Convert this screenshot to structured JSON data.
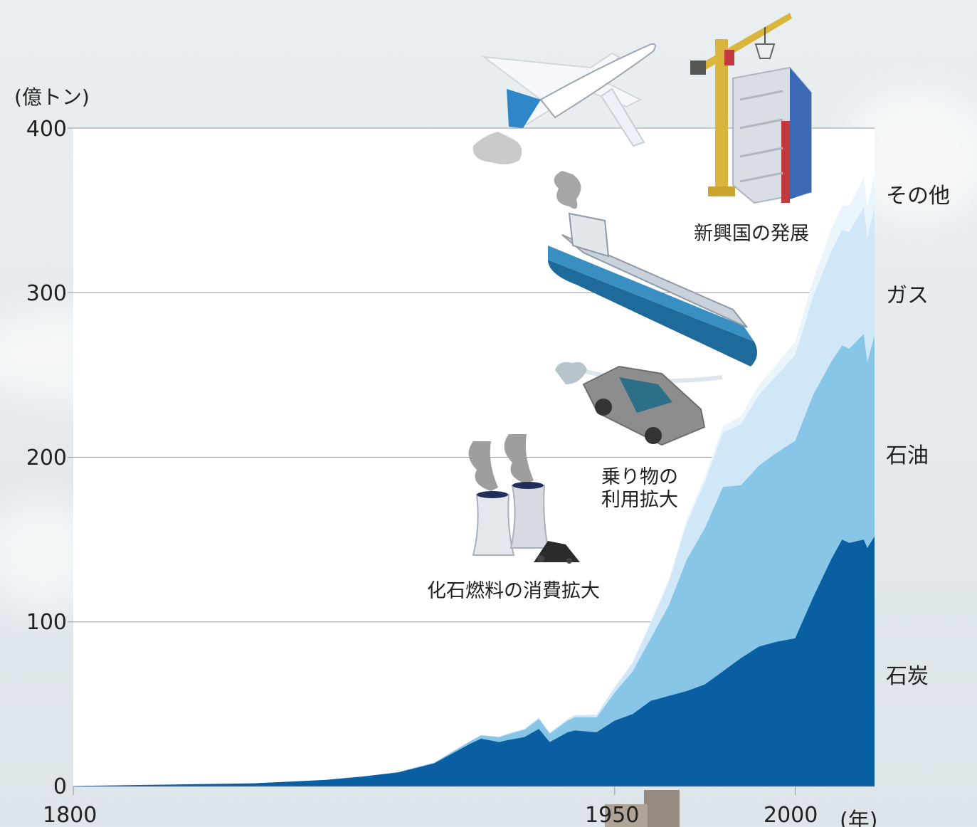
{
  "chart_data": {
    "type": "area",
    "stacked": true,
    "unit_label": "(億トン)",
    "x_unit_label": "(年)",
    "xlim": [
      1800,
      2022
    ],
    "ylim": [
      0,
      400
    ],
    "y_ticks": [
      "0",
      "100",
      "200",
      "300",
      "400"
    ],
    "x_ticks": [
      "1800",
      "1950",
      "2000"
    ],
    "grid": true,
    "x": [
      1800,
      1850,
      1870,
      1880,
      1890,
      1900,
      1910,
      1913,
      1918,
      1920,
      1925,
      1929,
      1932,
      1937,
      1939,
      1945,
      1950,
      1955,
      1960,
      1965,
      1970,
      1975,
      1980,
      1985,
      1990,
      1995,
      2000,
      2005,
      2010,
      2013,
      2015,
      2019,
      2020,
      2022
    ],
    "series": [
      {
        "name": "石炭",
        "values": [
          0.3,
          1.9,
          4,
          6,
          8.5,
          14,
          26,
          29,
          27,
          28,
          30,
          35,
          27,
          33,
          34,
          33,
          40,
          44,
          52,
          55,
          58,
          62,
          70,
          78,
          85,
          88,
          90,
          115,
          138,
          150,
          148,
          150,
          145,
          152
        ]
      },
      {
        "name": "石油",
        "values": [
          0,
          0,
          0,
          0,
          0.2,
          0.5,
          1.5,
          2,
          3,
          3.5,
          4.5,
          6,
          5,
          7,
          8,
          9,
          17,
          26,
          38,
          55,
          80,
          95,
          112,
          105,
          110,
          115,
          120,
          123,
          120,
          118,
          118,
          125,
          113,
          122
        ]
      },
      {
        "name": "ガス",
        "values": [
          0,
          0,
          0,
          0,
          0,
          0,
          0.1,
          0.2,
          0.2,
          0.3,
          0.5,
          0.8,
          0.8,
          1,
          1.3,
          1.5,
          3,
          5,
          9,
          14,
          22,
          28,
          33,
          37,
          43,
          47,
          52,
          60,
          67,
          70,
          71,
          77,
          75,
          78
        ]
      },
      {
        "name": "その他",
        "values": [
          0,
          0,
          0,
          0,
          0,
          0,
          0,
          0,
          0,
          0,
          0,
          0,
          0,
          0,
          0,
          0.2,
          0.5,
          1,
          1.5,
          2,
          2.5,
          3,
          4,
          5,
          6,
          7,
          8,
          10,
          13,
          15,
          16,
          18,
          19,
          20
        ]
      }
    ],
    "colors": [
      "#0a5fa3",
      "#88c6e8",
      "#cfe7f6",
      "#e9f4fb"
    ],
    "annotations": [
      "化石燃料の消費拡大",
      "乗り物の\n利用拡大",
      "新興国の発展"
    ]
  }
}
